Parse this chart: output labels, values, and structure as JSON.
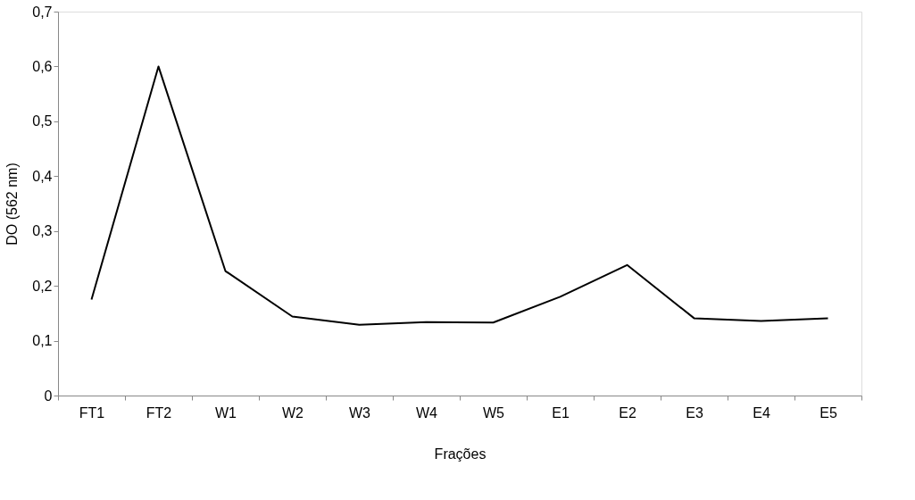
{
  "chart_data": {
    "type": "line",
    "xlabel": "Frações",
    "ylabel": "DO (562 nm)",
    "categories": [
      "FT1",
      "FT2",
      "W1",
      "W2",
      "W3",
      "W4",
      "W5",
      "E1",
      "E2",
      "E3",
      "E4",
      "E5"
    ],
    "series": [
      {
        "color": "#000000",
        "values": [
          0.175,
          0.6,
          0.227,
          0.144,
          0.129,
          0.134,
          0.133,
          0.18,
          0.238,
          0.141,
          0.136,
          0.141
        ]
      }
    ],
    "ylim": [
      0,
      0.7
    ],
    "yticks": [
      0,
      {
        "value": 0.1,
        "label": "0,1"
      },
      {
        "value": 0.2,
        "label": "0,2"
      },
      {
        "value": 0.3,
        "label": "0,3"
      },
      {
        "value": 0.4,
        "label": "0,4"
      },
      {
        "value": 0.5,
        "label": "0,5"
      },
      {
        "value": 0.6,
        "label": "0,6"
      },
      {
        "value": 0.7,
        "label": "0,7"
      }
    ],
    "grid": false,
    "marker": "none",
    "line_style": "solid"
  }
}
